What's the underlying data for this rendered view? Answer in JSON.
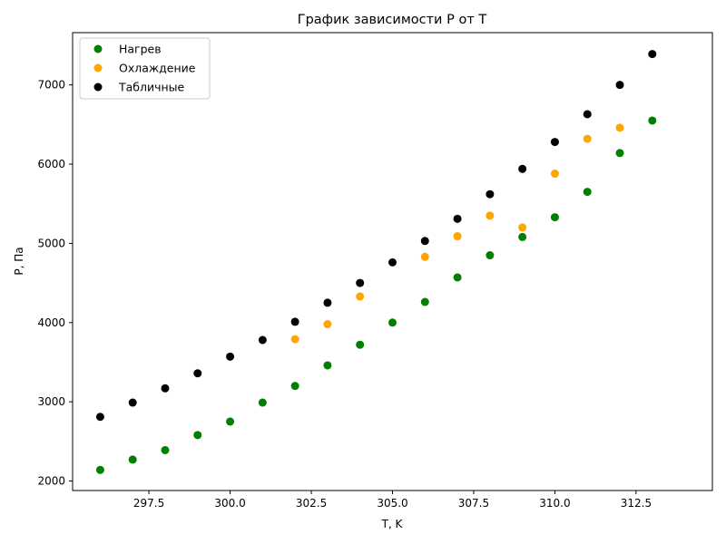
{
  "chart_data": {
    "type": "scatter",
    "title": "График зависимости P от T",
    "xlabel": "T, K",
    "ylabel": "P, Па",
    "xlim": [
      295.15,
      314.85
    ],
    "ylim": [
      1880,
      7660
    ],
    "xticks": [
      297.5,
      300.0,
      302.5,
      305.0,
      307.5,
      310.0,
      312.5
    ],
    "xtick_labels": [
      "297.5",
      "300.0",
      "302.5",
      "305.0",
      "307.5",
      "310.0",
      "312.5"
    ],
    "yticks": [
      2000,
      3000,
      4000,
      5000,
      6000,
      7000
    ],
    "ytick_labels": [
      "2000",
      "3000",
      "4000",
      "5000",
      "6000",
      "7000"
    ],
    "grid": false,
    "legend_position": "top-left",
    "series": [
      {
        "name": "Нагрев",
        "color": "#008000",
        "x": [
          296,
          297,
          298,
          299,
          300,
          301,
          302,
          303,
          304,
          305,
          306,
          307,
          308,
          309,
          310,
          311,
          312,
          313
        ],
        "y": [
          2140,
          2270,
          2390,
          2580,
          2750,
          2990,
          3200,
          3460,
          3720,
          4000,
          4260,
          4570,
          4850,
          5080,
          5330,
          5650,
          6140,
          6550
        ]
      },
      {
        "name": "Охлаждение",
        "color": "#FFA500",
        "x": [
          302,
          303,
          304,
          306,
          307,
          308,
          309,
          310,
          311,
          312
        ],
        "y": [
          3790,
          3980,
          4330,
          4830,
          5090,
          5350,
          5200,
          5880,
          6320,
          6460
        ]
      },
      {
        "name": "Табличные",
        "color": "#000000",
        "x": [
          296,
          297,
          298,
          299,
          300,
          301,
          302,
          303,
          304,
          305,
          306,
          307,
          308,
          309,
          310,
          311,
          312,
          313
        ],
        "y": [
          2810,
          2990,
          3170,
          3360,
          3570,
          3780,
          4010,
          4250,
          4500,
          4760,
          5030,
          5310,
          5620,
          5940,
          6280,
          6630,
          7000,
          7390
        ]
      }
    ]
  }
}
